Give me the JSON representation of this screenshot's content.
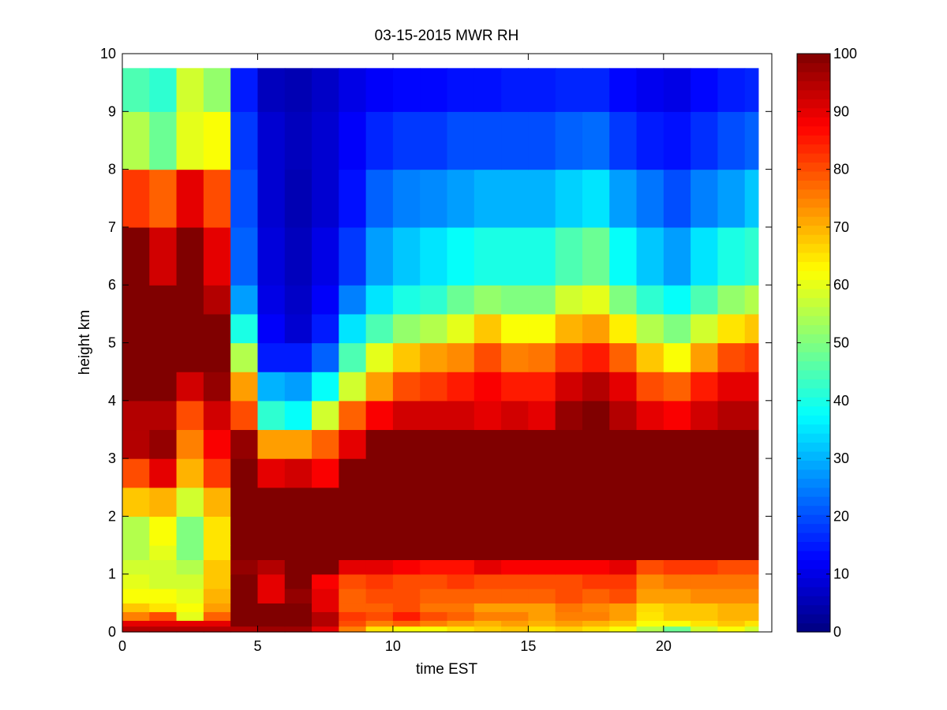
{
  "chart_data": {
    "type": "heatmap",
    "title": "03-15-2015 MWR RH",
    "xlabel": "time EST",
    "ylabel": "height km",
    "xlim": [
      0,
      24
    ],
    "ylim": [
      0,
      10
    ],
    "x_ticks": [
      "0",
      "5",
      "10",
      "15",
      "20"
    ],
    "y_ticks": [
      "0",
      "1",
      "2",
      "3",
      "4",
      "5",
      "6",
      "7",
      "8",
      "9",
      "10"
    ],
    "colorbar": {
      "colormap": "jet",
      "range": [
        0,
        100
      ],
      "ticks": [
        "0",
        "10",
        "20",
        "30",
        "40",
        "50",
        "60",
        "70",
        "80",
        "90",
        "100"
      ]
    },
    "x": [
      0,
      1,
      2,
      3,
      4,
      5,
      6,
      7,
      8,
      9,
      10,
      11,
      12,
      13,
      14,
      15,
      16,
      17,
      18,
      19,
      20,
      21,
      22,
      23
    ],
    "y": [
      0,
      0.1,
      0.2,
      0.35,
      0.5,
      0.75,
      1,
      1.25,
      1.5,
      2,
      2.5,
      3,
      3.5,
      4,
      4.5,
      5,
      5.5,
      6,
      7,
      8,
      9,
      9.75
    ],
    "values": [
      [
        95,
        95,
        95,
        95,
        95,
        97,
        97,
        90,
        75,
        65,
        62,
        62,
        65,
        67,
        68,
        65,
        67,
        65,
        62,
        55,
        48,
        58,
        62,
        58
      ],
      [
        90,
        90,
        90,
        90,
        100,
        100,
        100,
        95,
        80,
        75,
        78,
        75,
        72,
        70,
        72,
        70,
        72,
        70,
        68,
        62,
        62,
        65,
        68,
        65
      ],
      [
        75,
        80,
        60,
        78,
        100,
        100,
        100,
        95,
        82,
        80,
        85,
        80,
        78,
        75,
        75,
        72,
        75,
        75,
        72,
        65,
        68,
        68,
        70,
        70
      ],
      [
        68,
        65,
        62,
        72,
        100,
        100,
        100,
        90,
        78,
        78,
        80,
        76,
        76,
        72,
        72,
        72,
        76,
        74,
        72,
        66,
        68,
        68,
        70,
        70
      ],
      [
        62,
        62,
        60,
        70,
        100,
        90,
        98,
        90,
        78,
        80,
        80,
        78,
        78,
        78,
        78,
        78,
        80,
        78,
        80,
        72,
        72,
        74,
        74,
        74
      ],
      [
        60,
        58,
        58,
        68,
        100,
        90,
        100,
        88,
        80,
        82,
        80,
        80,
        82,
        80,
        80,
        80,
        80,
        82,
        82,
        74,
        76,
        76,
        76,
        76
      ],
      [
        58,
        58,
        55,
        68,
        98,
        95,
        100,
        100,
        90,
        90,
        88,
        86,
        86,
        90,
        88,
        88,
        88,
        88,
        90,
        80,
        82,
        82,
        80,
        80
      ],
      [
        55,
        60,
        50,
        65,
        100,
        100,
        100,
        100,
        100,
        100,
        100,
        100,
        100,
        100,
        100,
        100,
        100,
        100,
        100,
        100,
        100,
        100,
        100,
        100
      ],
      [
        55,
        62,
        50,
        65,
        100,
        100,
        100,
        100,
        100,
        100,
        100,
        100,
        100,
        100,
        100,
        100,
        100,
        100,
        100,
        100,
        100,
        100,
        100,
        100
      ],
      [
        68,
        70,
        58,
        70,
        100,
        100,
        100,
        100,
        100,
        100,
        100,
        100,
        100,
        100,
        100,
        100,
        100,
        100,
        100,
        100,
        100,
        100,
        100,
        100
      ],
      [
        80,
        90,
        70,
        82,
        100,
        90,
        92,
        88,
        100,
        100,
        100,
        100,
        100,
        100,
        100,
        100,
        100,
        100,
        100,
        100,
        100,
        100,
        100,
        100
      ],
      [
        95,
        98,
        75,
        88,
        98,
        72,
        72,
        78,
        90,
        100,
        100,
        100,
        100,
        100,
        100,
        100,
        100,
        100,
        100,
        100,
        100,
        100,
        100,
        100
      ],
      [
        95,
        95,
        80,
        92,
        80,
        42,
        38,
        58,
        78,
        88,
        92,
        92,
        92,
        90,
        92,
        90,
        98,
        100,
        95,
        90,
        88,
        92,
        95,
        95
      ],
      [
        100,
        100,
        92,
        98,
        72,
        30,
        28,
        38,
        58,
        72,
        80,
        82,
        85,
        88,
        85,
        85,
        92,
        95,
        90,
        80,
        78,
        85,
        90,
        90
      ],
      [
        100,
        100,
        100,
        100,
        55,
        15,
        15,
        22,
        45,
        60,
        68,
        72,
        74,
        80,
        75,
        76,
        82,
        85,
        78,
        68,
        62,
        72,
        80,
        82
      ],
      [
        100,
        100,
        100,
        100,
        40,
        12,
        8,
        15,
        35,
        45,
        52,
        55,
        60,
        68,
        62,
        62,
        70,
        72,
        64,
        55,
        50,
        58,
        65,
        68
      ],
      [
        100,
        100,
        100,
        95,
        28,
        10,
        7,
        12,
        25,
        35,
        40,
        42,
        48,
        52,
        50,
        50,
        58,
        60,
        50,
        42,
        38,
        45,
        52,
        55
      ],
      [
        100,
        92,
        100,
        90,
        22,
        9,
        6,
        10,
        18,
        28,
        32,
        35,
        38,
        40,
        40,
        40,
        45,
        48,
        38,
        32,
        28,
        35,
        40,
        42
      ],
      [
        82,
        78,
        90,
        80,
        20,
        8,
        5,
        8,
        14,
        22,
        25,
        26,
        28,
        30,
        30,
        30,
        33,
        35,
        28,
        24,
        20,
        25,
        28,
        32
      ],
      [
        55,
        48,
        60,
        62,
        18,
        8,
        6,
        8,
        12,
        16,
        18,
        18,
        20,
        20,
        20,
        20,
        22,
        23,
        18,
        15,
        14,
        17,
        20,
        22
      ],
      [
        45,
        42,
        58,
        52,
        15,
        6,
        5,
        7,
        10,
        12,
        13,
        13,
        14,
        14,
        15,
        15,
        16,
        16,
        13,
        11,
        10,
        13,
        15,
        16
      ],
      [
        40,
        38,
        70,
        45,
        13,
        5,
        4,
        6,
        8,
        10,
        11,
        11,
        11,
        12,
        12,
        12,
        13,
        13,
        11,
        10,
        9,
        11,
        12,
        13
      ]
    ]
  }
}
